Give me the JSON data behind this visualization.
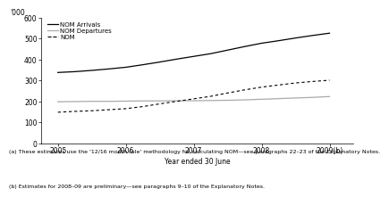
{
  "ylabel": "'000",
  "xlabel": "Year ended 30 June",
  "ylim": [
    0,
    600
  ],
  "yticks": [
    0,
    100,
    200,
    300,
    400,
    500,
    600
  ],
  "xlim": [
    2004.75,
    2009.35
  ],
  "xticks": [
    2005,
    2006,
    2007,
    2008,
    2009
  ],
  "xticklabels": [
    "2005",
    "2006",
    "2007",
    "2008",
    "2009(b)"
  ],
  "nom_arrivals_x": [
    2005,
    2005.25,
    2005.5,
    2005.75,
    2006,
    2006.25,
    2006.5,
    2006.75,
    2007,
    2007.25,
    2007.5,
    2007.75,
    2008,
    2008.25,
    2008.5,
    2008.75,
    2009
  ],
  "nom_arrivals_y": [
    338,
    342,
    348,
    355,
    363,
    375,
    388,
    402,
    415,
    428,
    445,
    462,
    478,
    490,
    503,
    515,
    526
  ],
  "nom_departures_x": [
    2005,
    2005.25,
    2005.5,
    2005.75,
    2006,
    2006.25,
    2006.5,
    2006.75,
    2007,
    2007.25,
    2007.5,
    2007.75,
    2008,
    2008.25,
    2008.5,
    2008.75,
    2009
  ],
  "nom_departures_y": [
    198,
    199,
    200,
    200,
    201,
    202,
    202,
    203,
    203,
    204,
    205,
    207,
    210,
    213,
    216,
    219,
    223
  ],
  "nom_x": [
    2005,
    2005.25,
    2005.5,
    2005.75,
    2006,
    2006.25,
    2006.5,
    2006.75,
    2007,
    2007.25,
    2007.5,
    2007.75,
    2008,
    2008.25,
    2008.5,
    2008.75,
    2009
  ],
  "nom_y": [
    148,
    152,
    155,
    160,
    165,
    175,
    188,
    200,
    212,
    224,
    240,
    255,
    268,
    278,
    288,
    295,
    301
  ],
  "color_arrivals": "#000000",
  "color_departures": "#aaaaaa",
  "color_nom": "#000000",
  "footnote_a": "(a) These estimates use the '12/16 month rule' methodology for calculating NOM—see paragraphs 22–23 of the Explanatory Notes.",
  "footnote_b": "(b) Estimates for 2008–09 are preliminary—see paragraphs 9–10 of the Explanatory Notes."
}
